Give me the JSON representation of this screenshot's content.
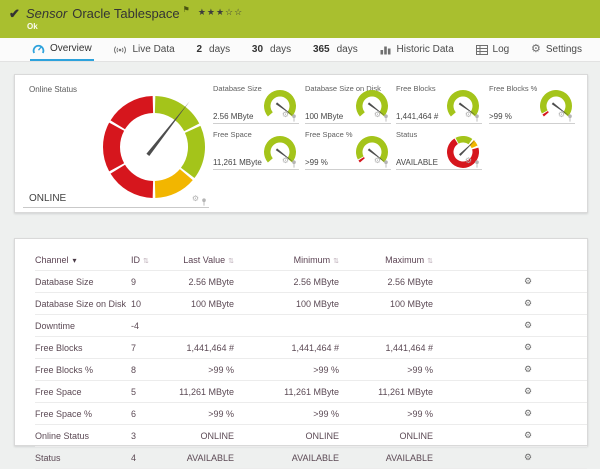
{
  "colors": {
    "header_green": "#a9bf2f",
    "accent_blue": "#2da2dc",
    "gauge_green": "#a4c41a",
    "gauge_yellow": "#f2b600",
    "gauge_red": "#d6161d",
    "needle": "#4d4d4d"
  },
  "header": {
    "check_icon": "check-icon",
    "sensor_label": "Sensor",
    "sensor_name": "Oracle Tablespace",
    "flag_icon": "flag-icon",
    "rating": {
      "filled": 3,
      "empty": 2,
      "filled_char": "★",
      "empty_char": "☆"
    },
    "status": "Ok"
  },
  "tabs": [
    {
      "label": "Overview",
      "icon": "gauge-icon",
      "active": true
    },
    {
      "label": "Live Data",
      "icon": "live-data-icon"
    },
    {
      "prefix": "2",
      "label": "days"
    },
    {
      "prefix": "30",
      "label": "days"
    },
    {
      "prefix": "365",
      "label": "days"
    },
    {
      "label": "Historic Data",
      "icon": "bar-chart-icon"
    },
    {
      "label": "Log",
      "icon": "log-icon"
    },
    {
      "label": "Settings",
      "icon": "settings-gear-icon"
    }
  ],
  "overview": {
    "main_gauge": {
      "title": "Online Status",
      "value": "ONLINE",
      "type": "full",
      "needle": 38,
      "segments": [
        {
          "from": 0,
          "to": 64,
          "color": "#a4c41a"
        },
        {
          "from": 64,
          "to": 129,
          "color": "#a4c41a"
        },
        {
          "from": 129,
          "to": 180,
          "color": "#f2b600"
        },
        {
          "from": 180,
          "to": 240,
          "color": "#d6161d"
        },
        {
          "from": 240,
          "to": 300,
          "color": "#d6161d"
        },
        {
          "from": 300,
          "to": 360,
          "color": "#d6161d"
        }
      ]
    },
    "mini_gauges": [
      {
        "title": "Database Size",
        "value": "2.56 MByte",
        "type": "arc",
        "needle": 127,
        "segments": [
          {
            "from": -133,
            "to": 133,
            "color": "#a4c41a"
          }
        ]
      },
      {
        "title": "Database Size on Disk",
        "value": "100 MByte",
        "type": "arc",
        "needle": 127,
        "segments": [
          {
            "from": -133,
            "to": 133,
            "color": "#a4c41a"
          }
        ]
      },
      {
        "title": "Free Blocks",
        "value": "1,441,464 #",
        "type": "arc",
        "needle": 126,
        "segments": [
          {
            "from": -133,
            "to": 133,
            "color": "#a4c41a"
          }
        ]
      },
      {
        "title": "Free Blocks %",
        "value": ">99 %",
        "type": "arc",
        "needle": 127,
        "segments": [
          {
            "from": -133,
            "to": -120,
            "color": "#d6161d"
          },
          {
            "from": -120,
            "to": 133,
            "color": "#a4c41a"
          }
        ]
      },
      {
        "title": "Free Space",
        "value": "11,261 MByte",
        "type": "arc",
        "needle": 127,
        "segments": [
          {
            "from": -133,
            "to": 133,
            "color": "#a4c41a"
          }
        ]
      },
      {
        "title": "Free Space %",
        "value": ">99 %",
        "type": "arc",
        "needle": 128,
        "segments": [
          {
            "from": -133,
            "to": -120,
            "color": "#d6161d"
          },
          {
            "from": -120,
            "to": 133,
            "color": "#a4c41a"
          }
        ]
      },
      {
        "title": "Status",
        "value": "AVAILABLE",
        "type": "full",
        "needle": 46,
        "segments": [
          {
            "from": -30,
            "to": 38,
            "color": "#a4c41a"
          },
          {
            "from": 40,
            "to": 68,
            "color": "#f2b600"
          },
          {
            "from": 72,
            "to": 330,
            "color": "#d6161d"
          }
        ]
      }
    ],
    "tile_icons": {
      "gear": "gear-icon",
      "pin": "pin-icon"
    }
  },
  "table": {
    "columns": [
      {
        "label": "Channel",
        "sorted": true
      },
      {
        "label": "ID"
      },
      {
        "label": "Last Value"
      },
      {
        "label": "Minimum"
      },
      {
        "label": "Maximum"
      }
    ],
    "rows": [
      {
        "channel": "Database Size",
        "id": "9",
        "last": "2.56 MByte",
        "min": "2.56 MByte",
        "max": "2.56 MByte"
      },
      {
        "channel": "Database Size on Disk",
        "id": "10",
        "last": "100 MByte",
        "min": "100 MByte",
        "max": "100 MByte"
      },
      {
        "channel": "Downtime",
        "id": "-4",
        "last": "",
        "min": "",
        "max": ""
      },
      {
        "channel": "Free Blocks",
        "id": "7",
        "last": "1,441,464 #",
        "min": "1,441,464 #",
        "max": "1,441,464 #"
      },
      {
        "channel": "Free Blocks %",
        "id": "8",
        "last": ">99 %",
        "min": ">99 %",
        "max": ">99 %"
      },
      {
        "channel": "Free Space",
        "id": "5",
        "last": "11,261 MByte",
        "min": "11,261 MByte",
        "max": "11,261 MByte"
      },
      {
        "channel": "Free Space %",
        "id": "6",
        "last": ">99 %",
        "min": ">99 %",
        "max": ">99 %"
      },
      {
        "channel": "Online Status",
        "id": "3",
        "last": "ONLINE",
        "min": "ONLINE",
        "max": "ONLINE"
      },
      {
        "channel": "Status",
        "id": "4",
        "last": "AVAILABLE",
        "min": "AVAILABLE",
        "max": "AVAILABLE"
      }
    ]
  }
}
